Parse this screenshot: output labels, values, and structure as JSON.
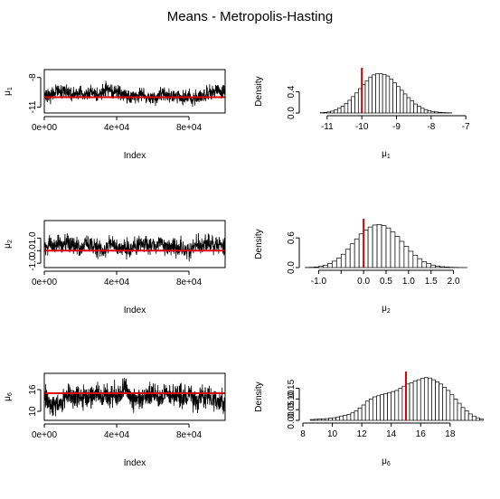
{
  "figure": {
    "title": "Means - Metropolis-Hasting"
  },
  "chart_data": [
    {
      "type": "line",
      "panel": "trace-mu1",
      "xlabel": "Index",
      "ylabel": "μ",
      "ylabel_sub": "1",
      "xlim": [
        0,
        100000
      ],
      "ylim": [
        -11.6,
        -7.2
      ],
      "xticks": [
        0,
        40000,
        80000
      ],
      "xtick_labels": [
        "0e+00",
        "4e+04",
        "8e+04"
      ],
      "yticks": [
        -11,
        -8
      ],
      "ytick_labels": [
        "-11",
        "-8"
      ],
      "n_draws": 100000,
      "center": -9.6,
      "spread": 0.45,
      "reference_line": -10,
      "reference_color": "#dd0000"
    },
    {
      "type": "bar",
      "panel": "hist-mu1",
      "xlabel": "μ",
      "xlabel_sub": "1",
      "ylabel": "Density",
      "xlim": [
        -11.7,
        -6.9
      ],
      "ylim": [
        0,
        0.82
      ],
      "xticks": [
        -11,
        -10,
        -9,
        -8,
        -7
      ],
      "xtick_labels": [
        "-11",
        "-10",
        "-9",
        "-8",
        "-7"
      ],
      "yticks": [
        0,
        0.4
      ],
      "ytick_labels": [
        "0.0",
        "0.4"
      ],
      "bins": {
        "start": -11.2,
        "width": 0.1,
        "density": [
          0.006,
          0.012,
          0.02,
          0.035,
          0.06,
          0.09,
          0.13,
          0.18,
          0.24,
          0.31,
          0.38,
          0.46,
          0.54,
          0.61,
          0.68,
          0.72,
          0.74,
          0.74,
          0.73,
          0.7,
          0.64,
          0.57,
          0.5,
          0.43,
          0.36,
          0.29,
          0.23,
          0.17,
          0.13,
          0.09,
          0.065,
          0.045,
          0.03,
          0.02,
          0.013,
          0.008,
          0.005,
          0.003
        ]
      },
      "reference_line": -10,
      "reference_color": "#dd0000"
    },
    {
      "type": "line",
      "panel": "trace-mu2",
      "xlabel": "Index",
      "ylabel": "μ",
      "ylabel_sub": "2",
      "xlim": [
        0,
        100000
      ],
      "ylim": [
        -1.35,
        2.4
      ],
      "xticks": [
        0,
        40000,
        80000
      ],
      "xtick_labels": [
        "0e+00",
        "4e+04",
        "8e+04"
      ],
      "yticks": [
        -1,
        0,
        1
      ],
      "ytick_labels": [
        "-1.0",
        "0.0",
        "1.0"
      ],
      "n_draws": 100000,
      "center": 0.4,
      "spread": 0.42,
      "reference_line": 0,
      "reference_color": "#dd0000"
    },
    {
      "type": "bar",
      "panel": "hist-mu2",
      "xlabel": "μ",
      "xlabel_sub": "2",
      "ylabel": "Density",
      "xlim": [
        -1.35,
        2.35
      ],
      "ylim": [
        0,
        0.95
      ],
      "xticks": [
        -1,
        -0.5,
        0,
        0.5,
        1,
        1.5,
        2
      ],
      "xtick_labels": [
        "-1.0",
        "",
        "0.0",
        "0.5",
        "1.0",
        "1.5",
        "2.0"
      ],
      "yticks": [
        0,
        0.6
      ],
      "ytick_labels": [
        "0.0",
        "0.6"
      ],
      "bins": {
        "start": -1.3,
        "width": 0.1,
        "density": [
          0.003,
          0.006,
          0.012,
          0.025,
          0.045,
          0.08,
          0.13,
          0.19,
          0.27,
          0.37,
          0.48,
          0.58,
          0.68,
          0.76,
          0.82,
          0.86,
          0.87,
          0.85,
          0.8,
          0.72,
          0.63,
          0.53,
          0.43,
          0.33,
          0.25,
          0.18,
          0.12,
          0.08,
          0.05,
          0.03,
          0.018,
          0.01,
          0.006,
          0.004,
          0.002,
          0.001
        ]
      },
      "reference_line": 0,
      "reference_color": "#dd0000"
    },
    {
      "type": "line",
      "panel": "trace-mu6",
      "xlabel": "Index",
      "ylabel": "μ",
      "ylabel_sub": "6",
      "xlim": [
        0,
        100000
      ],
      "ylim": [
        7.5,
        20.5
      ],
      "xticks": [
        0,
        40000,
        80000
      ],
      "xtick_labels": [
        "0e+00",
        "4e+04",
        "8e+04"
      ],
      "yticks": [
        10,
        16
      ],
      "ytick_labels": [
        "10",
        "16"
      ],
      "n_draws": 100000,
      "center": 14.3,
      "spread": 1.9,
      "reference_line": 15,
      "reference_color": "#dd0000"
    },
    {
      "type": "bar",
      "panel": "hist-mu6",
      "xlabel": "μ",
      "xlabel_sub": "6",
      "ylabel": "Density",
      "xlim": [
        8,
        19.3
      ],
      "ylim": [
        0,
        0.22
      ],
      "xticks": [
        8,
        10,
        12,
        14,
        16,
        18
      ],
      "xtick_labels": [
        "8",
        "10",
        "12",
        "14",
        "16",
        "18"
      ],
      "yticks": [
        0,
        0.05,
        0.1,
        0.15
      ],
      "ytick_labels": [
        "0.00",
        "0.05",
        "0.10",
        "0.15"
      ],
      "bins": {
        "start": 8.5,
        "width": 0.25,
        "density": [
          0.004,
          0.005,
          0.006,
          0.007,
          0.008,
          0.01,
          0.012,
          0.016,
          0.02,
          0.024,
          0.028,
          0.035,
          0.045,
          0.058,
          0.072,
          0.09,
          0.1,
          0.11,
          0.115,
          0.12,
          0.125,
          0.13,
          0.135,
          0.14,
          0.15,
          0.16,
          0.17,
          0.175,
          0.185,
          0.19,
          0.196,
          0.2,
          0.198,
          0.19,
          0.18,
          0.17,
          0.155,
          0.14,
          0.12,
          0.1,
          0.08,
          0.06,
          0.045,
          0.03,
          0.02,
          0.012,
          0.006
        ]
      },
      "reference_line": 15,
      "reference_color": "#dd0000"
    }
  ]
}
